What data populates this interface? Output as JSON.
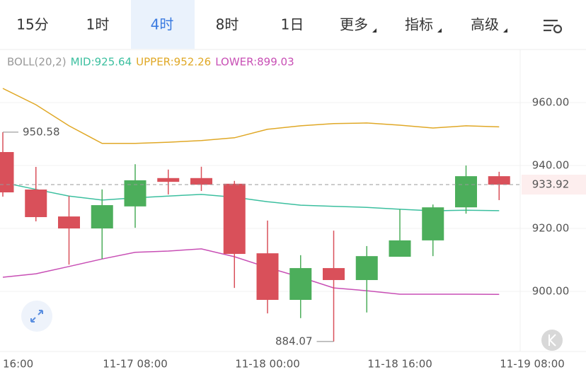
{
  "tabs": [
    {
      "label": "15分"
    },
    {
      "label": "1时"
    },
    {
      "label": "4时",
      "selected": true
    },
    {
      "label": "8时"
    },
    {
      "label": "1日"
    },
    {
      "label": "更多",
      "dropdown": true
    },
    {
      "label": "指标",
      "dropdown": true
    },
    {
      "label": "高级",
      "dropdown": true
    }
  ],
  "chart_data": {
    "type": "candlestick",
    "indicator": "BOLL(20,2)",
    "categories": [
      "16:00",
      null,
      null,
      null,
      "11-17 08:00",
      null,
      null,
      null,
      "11-18 00:00",
      null,
      null,
      null,
      "11-18 16:00",
      null,
      null,
      null,
      "11-19 08:00"
    ],
    "open": [
      944.27,
      932.36,
      923.8,
      920.0,
      927.0,
      936.0,
      936.0,
      934.2,
      912.1,
      897.3,
      907.4,
      903.6,
      911.0,
      916.2,
      926.7,
      936.6,
      null
    ],
    "high": [
      950.58,
      939.55,
      930.3,
      932.4,
      940.4,
      938.7,
      939.6,
      935.1,
      922.5,
      911.5,
      919.3,
      914.4,
      926.1,
      927.6,
      940.0,
      938.0,
      null
    ],
    "low": [
      930.1,
      922.25,
      908.5,
      910.3,
      920.2,
      930.8,
      931.9,
      901.1,
      893.0,
      891.5,
      884.07,
      893.3,
      911.0,
      911.2,
      924.7,
      929.0,
      null
    ],
    "close": [
      931.46,
      923.6,
      920.0,
      927.4,
      935.3,
      934.8,
      933.9,
      911.9,
      897.3,
      907.4,
      903.6,
      911.2,
      916.2,
      926.7,
      936.6,
      933.92,
      null
    ],
    "up_color": "#4cae5b",
    "down_color": "#d9505a",
    "series": [
      {
        "name": "MID:925.64",
        "color": "#3bbf9f",
        "values": [
          934.6,
          932.4,
          930.3,
          929.0,
          929.7,
          930.3,
          930.8,
          929.9,
          928.5,
          927.4,
          927.0,
          926.7,
          926.1,
          925.6,
          925.8,
          925.64,
          null
        ]
      },
      {
        "name": "UPPER:952.26",
        "color": "#e0a826",
        "values": [
          964.5,
          959.3,
          952.6,
          947.0,
          947.0,
          947.4,
          947.9,
          948.8,
          951.5,
          952.6,
          953.3,
          953.5,
          952.8,
          951.9,
          952.6,
          952.26,
          null
        ]
      },
      {
        "name": "LOWER:899.03",
        "color": "#c84fb5",
        "values": [
          904.5,
          905.6,
          907.9,
          910.3,
          912.4,
          912.8,
          913.5,
          911.0,
          907.6,
          904.5,
          901.1,
          900.2,
          899.1,
          899.1,
          899.1,
          899.03,
          null
        ]
      }
    ],
    "last_price": 933.92,
    "max_annotation": 950.58,
    "min_annotation": 884.07,
    "ylim": [
      880.9,
      970.11
    ],
    "yticks": [
      {
        "value": 960,
        "label": "960.00"
      },
      {
        "value": 940,
        "label": "940.00"
      },
      {
        "value": 920,
        "label": "920.00"
      },
      {
        "value": 900,
        "label": "900.00"
      }
    ],
    "grid": true
  }
}
